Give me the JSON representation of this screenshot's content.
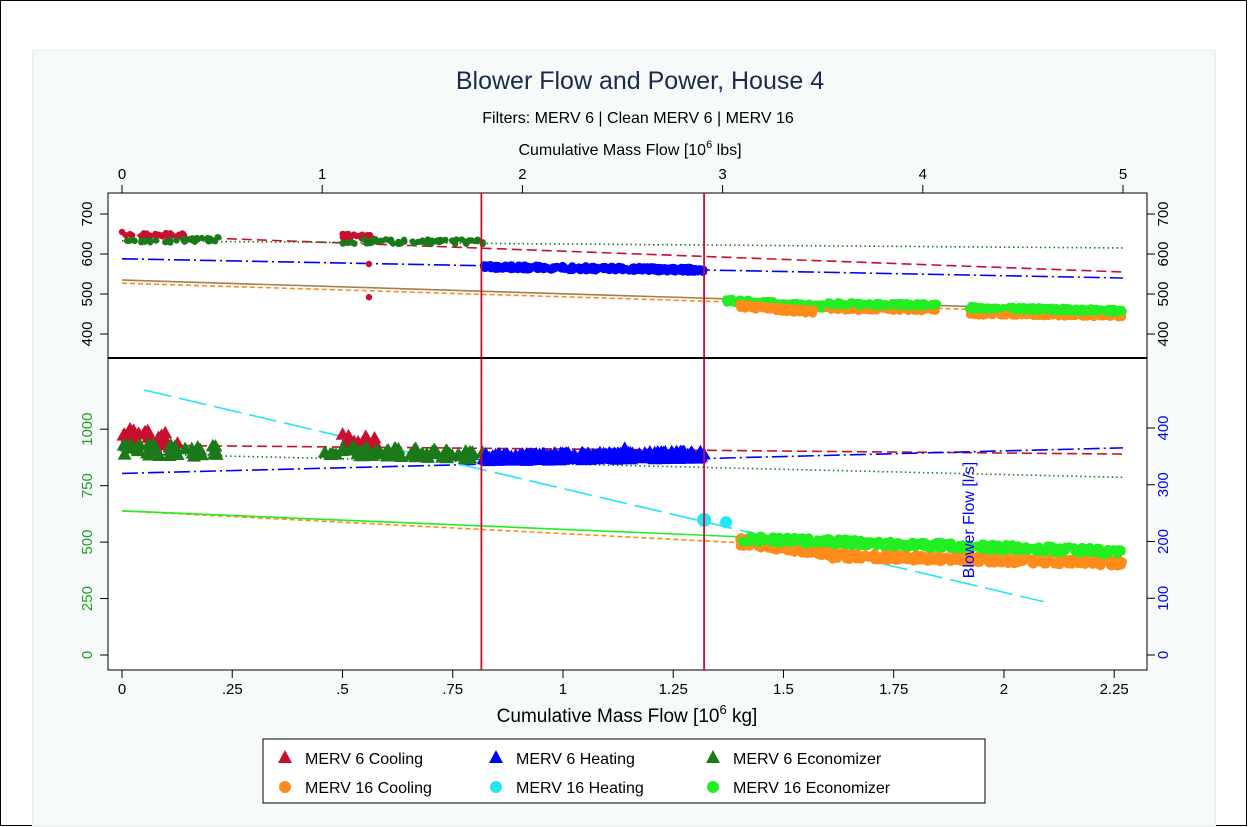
{
  "chart_data": {
    "type": "scatter",
    "title": "Blower Flow and Power, House 4",
    "subtitle": "Filters: MERV 6 | Clean MERV 6 | MERV 16",
    "top_axis": {
      "label_pre": "Cumulative Mass Flow [10",
      "label_exp": "6",
      "label_post": " lbs]",
      "range": [
        0,
        5
      ],
      "ticks": [
        0,
        1,
        2,
        3,
        4,
        5
      ],
      "tick_labels": [
        "0",
        "1",
        "2",
        "3",
        "4",
        "5"
      ]
    },
    "bottom_axis": {
      "label_pre": "Cumulative Mass Flow [10",
      "label_exp": "6",
      "label_post": " kg]",
      "range": [
        0,
        2.27
      ],
      "ticks": [
        0,
        0.25,
        0.5,
        0.75,
        1,
        1.25,
        1.5,
        1.75,
        2,
        2.25
      ],
      "tick_labels": [
        "0",
        ".25",
        ".5",
        ".75",
        "1",
        "1.25",
        "1.5",
        "1.75",
        "2",
        "2.25"
      ]
    },
    "upper_panel": {
      "y_range": [
        350,
        720
      ],
      "ticks": [
        400,
        500,
        600,
        700
      ],
      "tick_labels": [
        "400",
        "500",
        "600",
        "700"
      ]
    },
    "lower_panel": {
      "left_axis": {
        "ticks": [
          0,
          250,
          500,
          750,
          1000
        ],
        "tick_labels": [
          "0",
          "250",
          "500",
          "750",
          "1000"
        ],
        "color": "#1e9e1e"
      },
      "right_axis": {
        "label": "Blower Flow [l/s]",
        "ticks": [
          0,
          100,
          200,
          300,
          400
        ],
        "tick_labels": [
          "0",
          "100",
          "200",
          "300",
          "400"
        ],
        "range": [
          -20,
          490
        ],
        "color": "#0000ff"
      }
    },
    "filter_changes_kg": [
      0.815,
      1.32
    ],
    "series": [
      {
        "name": "MERV 6 Cooling",
        "color": "#c8102e",
        "marker": "triangle"
      },
      {
        "name": "MERV 6 Heating",
        "color": "#0000ff",
        "marker": "triangle"
      },
      {
        "name": "MERV 6 Economizer",
        "color": "#1a7a1a",
        "marker": "triangle"
      },
      {
        "name": "MERV 16 Cooling",
        "color": "#ff8c1a",
        "marker": "circle"
      },
      {
        "name": "MERV 16 Heating",
        "color": "#22e6f2",
        "marker": "circle"
      },
      {
        "name": "MERV 16 Economizer",
        "color": "#22ee22",
        "marker": "circle"
      }
    ],
    "upper_trend_lines": [
      {
        "color": "#c8102e",
        "dash": "10,5",
        "x": [
          0,
          2.27
        ],
        "y": [
          648,
          555
        ]
      },
      {
        "color": "#0000ff",
        "dash": "16,4,2,4",
        "x": [
          0,
          2.27
        ],
        "y": [
          588,
          540
        ]
      },
      {
        "color": "#1a7a1a",
        "dash": "1.5,3",
        "x": [
          0,
          2.27
        ],
        "y": [
          633,
          615
        ]
      },
      {
        "color": "#ff8c1a",
        "dash": "5,3",
        "x": [
          0,
          2.27
        ],
        "y": [
          527,
          450
        ]
      },
      {
        "color": "#a08050",
        "dash": "",
        "x": [
          0,
          2.27
        ],
        "y": [
          535,
          457
        ]
      }
    ],
    "lower_trend_lines": [
      {
        "color": "#c8102e",
        "dash": "10,5",
        "x": [
          0,
          2.27
        ],
        "y": [
          370,
          354
        ]
      },
      {
        "color": "#0000ff",
        "dash": "16,4,2,4",
        "x": [
          0,
          2.27
        ],
        "y": [
          320,
          365
        ]
      },
      {
        "color": "#1a7a1a",
        "dash": "1.5,3",
        "x": [
          0,
          2.27
        ],
        "y": [
          355,
          313
        ]
      },
      {
        "color": "#ff8c1a",
        "dash": "5,3",
        "x": [
          0,
          2.27
        ],
        "y": [
          254,
          163
        ]
      },
      {
        "color": "#22ee22",
        "dash": "",
        "x": [
          0,
          2.27
        ],
        "y": [
          254,
          180
        ]
      },
      {
        "color": "#22e6f2",
        "dash": "28,8",
        "x": [
          0.05,
          2.09
        ],
        "y": [
          467,
          94
        ]
      }
    ]
  }
}
